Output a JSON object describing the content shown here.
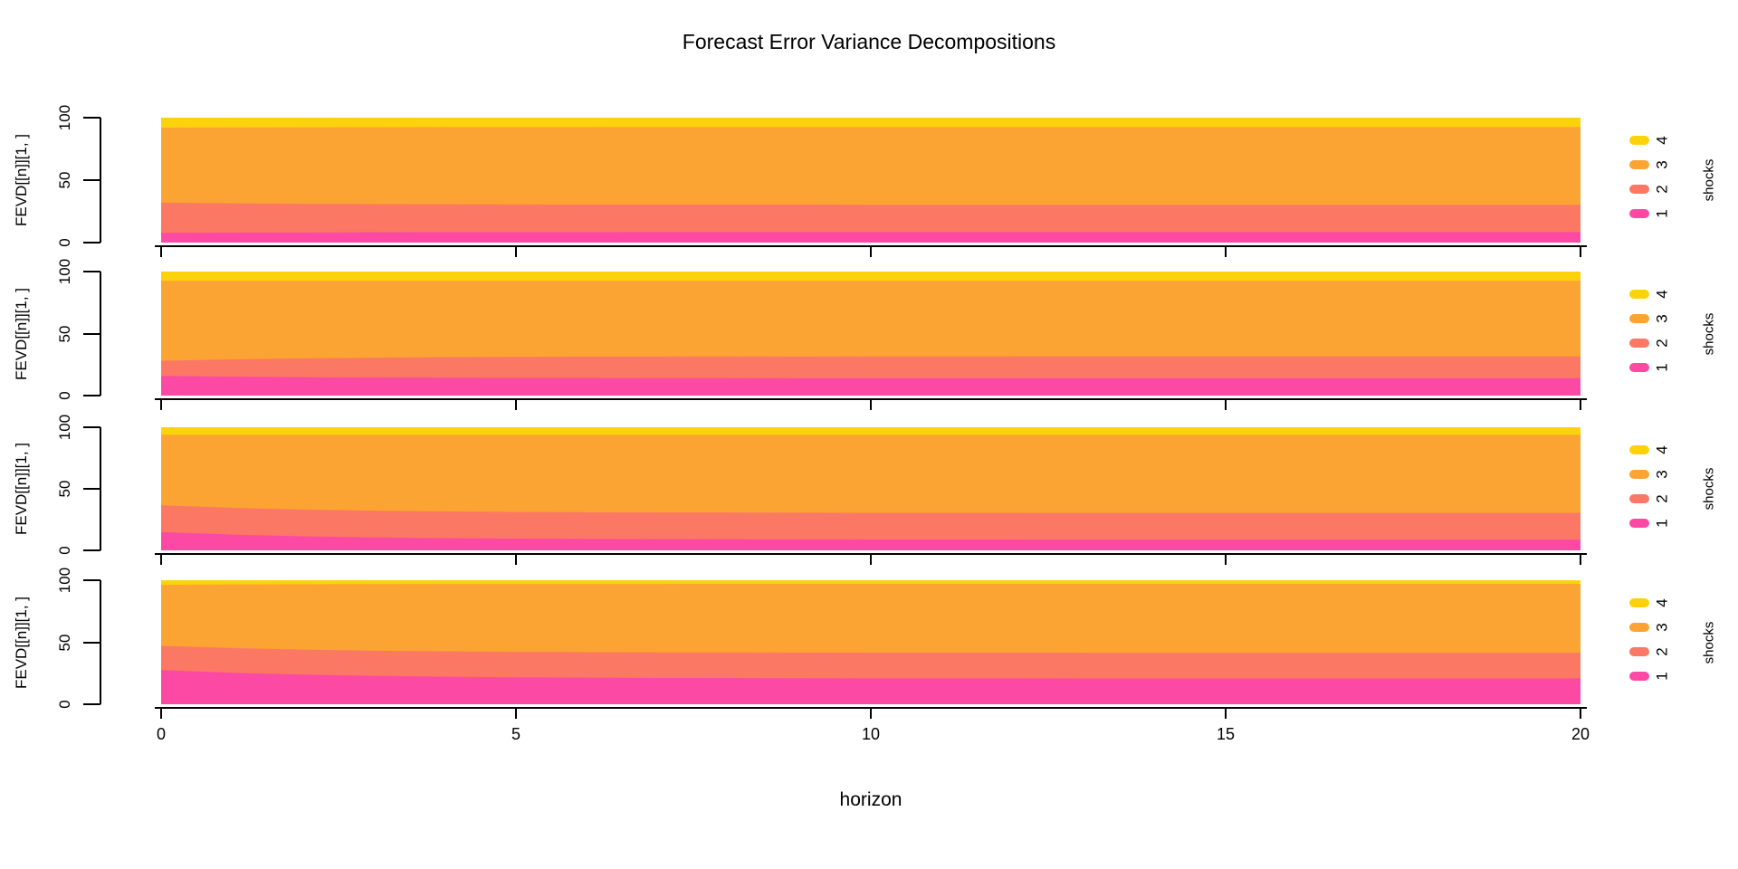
{
  "title": "Forecast Error Variance Decompositions",
  "xlabel": "horizon",
  "background": "#FFFFFF",
  "x_ticks": [
    "0",
    "5",
    "10",
    "15",
    "20"
  ],
  "y_ticks": [
    "0",
    "50",
    "100"
  ],
  "chart_data": [
    {
      "type": "area",
      "subtype": "stacked-percent",
      "ylabel": "FEVD[[n]][1, ]",
      "legend_title": "shocks",
      "legend_position": "right",
      "xlim": [
        0,
        20
      ],
      "ylim": [
        0,
        100
      ],
      "grid": false,
      "x": [
        0,
        1,
        2,
        3,
        4,
        5,
        6,
        7,
        8,
        9,
        10,
        11,
        12,
        13,
        14,
        15,
        16,
        17,
        18,
        19,
        20
      ],
      "series": [
        {
          "name": "1",
          "color": "#FC49A4",
          "values": [
            7.8,
            8.0,
            8.1,
            8.2,
            8.3,
            8.3,
            8.3,
            8.4,
            8.4,
            8.4,
            8.4,
            8.4,
            8.4,
            8.4,
            8.4,
            8.4,
            8.4,
            8.4,
            8.4,
            8.4,
            8.4
          ]
        },
        {
          "name": "2",
          "color": "#FA7864",
          "values": [
            24.2,
            23.4,
            22.9,
            22.6,
            22.4,
            22.2,
            22.1,
            22.0,
            22.0,
            22.0,
            21.9,
            21.9,
            21.9,
            21.9,
            21.9,
            21.9,
            21.9,
            21.9,
            21.9,
            21.9,
            21.9
          ]
        },
        {
          "name": "3",
          "color": "#FBA433",
          "values": [
            60.0,
            60.8,
            61.3,
            61.6,
            61.8,
            62.0,
            62.1,
            62.2,
            62.2,
            62.2,
            62.3,
            62.3,
            62.3,
            62.3,
            62.3,
            62.3,
            62.3,
            62.3,
            62.3,
            62.3,
            62.3
          ]
        },
        {
          "name": "4",
          "color": "#FCD20C",
          "values": [
            8.0,
            7.8,
            7.7,
            7.6,
            7.5,
            7.5,
            7.5,
            7.4,
            7.4,
            7.4,
            7.4,
            7.4,
            7.4,
            7.4,
            7.4,
            7.4,
            7.4,
            7.4,
            7.4,
            7.4,
            7.4
          ]
        }
      ]
    },
    {
      "type": "area",
      "subtype": "stacked-percent",
      "ylabel": "FEVD[[n]][1, ]",
      "legend_title": "shocks",
      "legend_position": "right",
      "xlim": [
        0,
        20
      ],
      "ylim": [
        0,
        100
      ],
      "grid": false,
      "x": [
        0,
        1,
        2,
        3,
        4,
        5,
        6,
        7,
        8,
        9,
        10,
        11,
        12,
        13,
        14,
        15,
        16,
        17,
        18,
        19,
        20
      ],
      "series": [
        {
          "name": "1",
          "color": "#FC49A4",
          "values": [
            15.8,
            15.2,
            14.8,
            14.5,
            14.4,
            14.2,
            14.2,
            14.1,
            14.1,
            14.0,
            14.0,
            14.0,
            14.0,
            14.0,
            14.0,
            14.0,
            14.0,
            14.0,
            14.0,
            14.0,
            14.0
          ]
        },
        {
          "name": "2",
          "color": "#FA7864",
          "values": [
            12.2,
            14.0,
            15.2,
            16.0,
            16.6,
            17.0,
            17.2,
            17.4,
            17.5,
            17.5,
            17.6,
            17.6,
            17.6,
            17.7,
            17.7,
            17.7,
            17.7,
            17.7,
            17.7,
            17.7,
            17.7
          ]
        },
        {
          "name": "3",
          "color": "#FBA433",
          "values": [
            64.6,
            63.4,
            62.6,
            62.1,
            61.6,
            61.4,
            61.2,
            61.1,
            61.0,
            61.1,
            61.0,
            61.0,
            61.0,
            60.9,
            60.9,
            60.9,
            60.9,
            60.9,
            60.9,
            60.9,
            60.9
          ]
        },
        {
          "name": "4",
          "color": "#FCD20C",
          "values": [
            7.4,
            7.4,
            7.4,
            7.4,
            7.4,
            7.4,
            7.4,
            7.4,
            7.4,
            7.4,
            7.4,
            7.4,
            7.4,
            7.4,
            7.4,
            7.4,
            7.4,
            7.4,
            7.4,
            7.4,
            7.4
          ]
        }
      ]
    },
    {
      "type": "area",
      "subtype": "stacked-percent",
      "ylabel": "FEVD[[n]][1, ]",
      "legend_title": "shocks",
      "legend_position": "right",
      "xlim": [
        0,
        20
      ],
      "ylim": [
        0,
        100
      ],
      "grid": false,
      "x": [
        0,
        1,
        2,
        3,
        4,
        5,
        6,
        7,
        8,
        9,
        10,
        11,
        12,
        13,
        14,
        15,
        16,
        17,
        18,
        19,
        20
      ],
      "series": [
        {
          "name": "1",
          "color": "#FC49A4",
          "values": [
            14.8,
            12.8,
            11.4,
            10.5,
            9.9,
            9.5,
            9.3,
            9.1,
            9.0,
            8.9,
            8.8,
            8.8,
            8.8,
            8.7,
            8.7,
            8.7,
            8.7,
            8.7,
            8.7,
            8.7,
            8.7
          ]
        },
        {
          "name": "2",
          "color": "#FA7864",
          "values": [
            21.8,
            21.8,
            21.8,
            21.7,
            21.7,
            21.7,
            21.7,
            21.7,
            21.7,
            21.7,
            21.7,
            21.7,
            21.7,
            21.7,
            21.7,
            21.7,
            21.7,
            21.7,
            21.7,
            21.7,
            21.7
          ]
        },
        {
          "name": "3",
          "color": "#FBA433",
          "values": [
            57.3,
            59.3,
            60.7,
            61.7,
            62.3,
            62.7,
            62.9,
            63.1,
            63.2,
            63.3,
            63.4,
            63.4,
            63.4,
            63.5,
            63.5,
            63.5,
            63.5,
            63.5,
            63.5,
            63.5,
            63.5
          ]
        },
        {
          "name": "4",
          "color": "#FCD20C",
          "values": [
            6.1,
            6.1,
            6.1,
            6.1,
            6.1,
            6.1,
            6.1,
            6.1,
            6.1,
            6.1,
            6.1,
            6.1,
            6.1,
            6.1,
            6.1,
            6.1,
            6.1,
            6.1,
            6.1,
            6.1,
            6.1
          ]
        }
      ]
    },
    {
      "type": "area",
      "subtype": "stacked-percent",
      "ylabel": "FEVD[[n]][1, ]",
      "legend_title": "shocks",
      "legend_position": "right",
      "xlim": [
        0,
        20
      ],
      "ylim": [
        0,
        100
      ],
      "grid": false,
      "x": [
        0,
        1,
        2,
        3,
        4,
        5,
        6,
        7,
        8,
        9,
        10,
        11,
        12,
        13,
        14,
        15,
        16,
        17,
        18,
        19,
        20
      ],
      "series": [
        {
          "name": "1",
          "color": "#FC49A4",
          "values": [
            27.6,
            25.4,
            23.9,
            22.9,
            22.2,
            21.7,
            21.4,
            21.2,
            21.1,
            21.0,
            20.9,
            20.9,
            20.9,
            20.8,
            20.8,
            20.8,
            20.8,
            20.8,
            20.8,
            20.8,
            20.8
          ]
        },
        {
          "name": "2",
          "color": "#FA7864",
          "values": [
            19.5,
            19.9,
            20.2,
            20.3,
            20.5,
            20.5,
            20.6,
            20.6,
            20.7,
            20.7,
            20.7,
            20.7,
            20.7,
            20.7,
            20.7,
            20.7,
            20.7,
            20.7,
            20.7,
            20.7,
            20.7
          ]
        },
        {
          "name": "3",
          "color": "#FBA433",
          "values": [
            49.2,
            51.3,
            52.7,
            53.7,
            54.3,
            54.8,
            55.0,
            55.2,
            55.3,
            55.4,
            55.5,
            55.5,
            55.5,
            55.6,
            55.6,
            55.6,
            55.6,
            55.6,
            55.6,
            55.6,
            55.6
          ]
        },
        {
          "name": "4",
          "color": "#FCD20C",
          "values": [
            3.7,
            3.4,
            3.3,
            3.1,
            3.1,
            3.0,
            3.0,
            3.0,
            2.9,
            2.9,
            2.9,
            2.9,
            2.9,
            2.9,
            2.9,
            2.9,
            2.9,
            2.9,
            2.9,
            2.9,
            2.9
          ]
        }
      ]
    }
  ]
}
